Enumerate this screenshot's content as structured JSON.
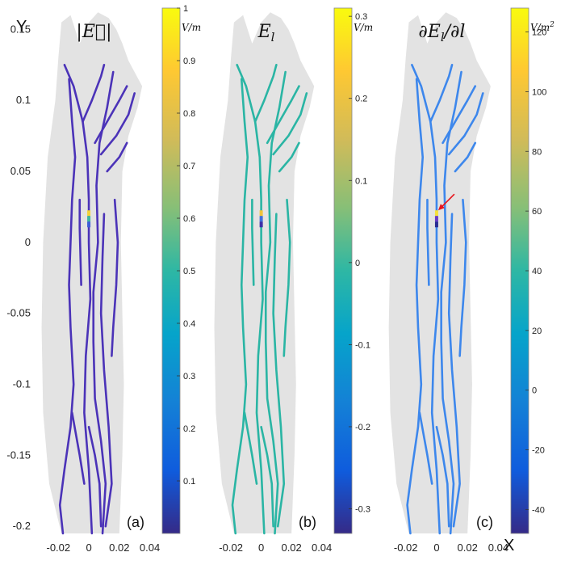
{
  "axis": {
    "x_label": "X",
    "y_label": "Y",
    "y_ticks": [
      0.15,
      0.1,
      0.05,
      0,
      -0.05,
      -0.1,
      -0.15,
      -0.2
    ],
    "y_tick_labels": [
      "0.15",
      "0.1",
      "0.05",
      "0",
      "-0.05",
      "-0.1",
      "-0.15",
      "-0.2"
    ],
    "x_ticks": [
      -0.02,
      0,
      0.02,
      0.04
    ],
    "x_tick_labels": [
      "-0.02",
      "0",
      "0.02",
      "0.04"
    ]
  },
  "colors": {
    "hand": "#e3e3e3",
    "arrow": "#e8141c"
  },
  "chart_data": [
    {
      "type": "heatmap",
      "panel": "(a)",
      "title": "|E⃗|",
      "unit": "V/m",
      "xlim": [
        -0.035,
        0.045
      ],
      "ylim": [
        -0.205,
        0.165
      ],
      "vein_color": "#4b33b8",
      "hotspot": {
        "x": 0,
        "y": 0.018,
        "colors": [
          "#f2d23a",
          "#3fb8a0",
          "#3f5ed8"
        ]
      },
      "colorbar": {
        "min": 0,
        "max": 1,
        "ticks": [
          1,
          0.9,
          0.8,
          0.7,
          0.6,
          0.5,
          0.4,
          0.3,
          0.2,
          0.1
        ],
        "tick_labels": [
          "1",
          "0.9",
          "0.8",
          "0.7",
          "0.6",
          "0.5",
          "0.4",
          "0.3",
          "0.2",
          "0.1"
        ]
      }
    },
    {
      "type": "heatmap",
      "panel": "(b)",
      "title": "E",
      "title_sub": "l",
      "unit": "V/m",
      "xlim": [
        -0.035,
        0.045
      ],
      "ylim": [
        -0.205,
        0.165
      ],
      "vein_color": "#2ab5a4",
      "hotspot": {
        "x": 0,
        "y": 0.018,
        "colors": [
          "#f0c43a",
          "#3f6fdc",
          "#3c2fa8"
        ]
      },
      "colorbar": {
        "min": -0.33,
        "max": 0.31,
        "ticks": [
          0.3,
          0.2,
          0.1,
          0,
          -0.1,
          -0.2,
          -0.3
        ],
        "tick_labels": [
          "0.3",
          "0.2",
          "0.1",
          "0",
          "-0.1",
          "-0.2",
          "-0.3"
        ]
      }
    },
    {
      "type": "heatmap",
      "panel": "(c)",
      "title": "∂E",
      "title_sub": "l",
      "title_tail": "/∂l",
      "unit": "V/m",
      "unit_sup": "2",
      "xlim": [
        -0.035,
        0.045
      ],
      "ylim": [
        -0.205,
        0.165
      ],
      "vein_color": "#3d87ec",
      "hotspot": {
        "x": 0,
        "y": 0.018,
        "colors": [
          "#f5e13a",
          "#6a3bc6",
          "#2a2c92"
        ]
      },
      "colorbar": {
        "min": -48,
        "max": 128,
        "ticks": [
          120,
          100,
          80,
          60,
          40,
          20,
          0,
          -20,
          -40
        ],
        "tick_labels": [
          "120",
          "100",
          "80",
          "60",
          "40",
          "20",
          "0",
          "-20",
          "-40"
        ]
      }
    }
  ]
}
